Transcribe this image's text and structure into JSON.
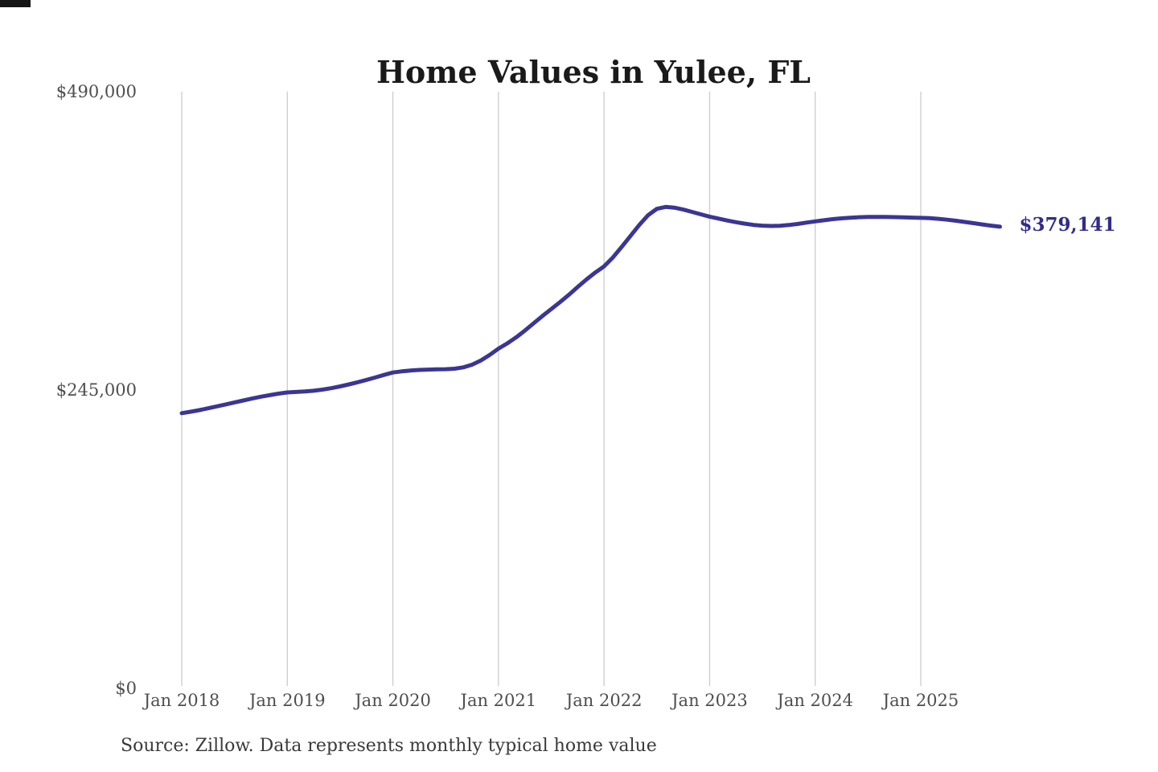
{
  "source_note": "Source: Zillow. Data represents monthly typical home value",
  "colors": {
    "line": "#3a3695",
    "end_label": "#302c8c",
    "gridline": "#cccccc",
    "axis_text": "#4e4e4e",
    "title_text": "#1a1a1a"
  },
  "chart_data": {
    "type": "line",
    "title": "Home Values in Yulee, FL",
    "xlabel": "",
    "ylabel": "",
    "ylim": [
      0,
      490000
    ],
    "grid": "vertical-yearly",
    "legend_position": "none",
    "y_ticks": [
      {
        "value": 0,
        "label": "$0"
      },
      {
        "value": 245000,
        "label": "$245,000"
      },
      {
        "value": 490000,
        "label": "$490,000"
      }
    ],
    "x_ticks": [
      "Jan 2018",
      "Jan 2019",
      "Jan 2020",
      "Jan 2021",
      "Jan 2022",
      "Jan 2023",
      "Jan 2024",
      "Jan 2025"
    ],
    "x_range": "Jan 2018 to Oct 2025, monthly",
    "end_label": "$379,141",
    "final_value": 379141,
    "series": [
      {
        "name": "Typical home value (USD)",
        "start_month": "2018-01",
        "values": [
          226000,
          227200,
          228500,
          230000,
          231600,
          233200,
          234800,
          236400,
          238000,
          239500,
          240800,
          242000,
          243000,
          243400,
          243800,
          244400,
          245300,
          246500,
          248000,
          249600,
          251400,
          253300,
          255300,
          257400,
          259400,
          260300,
          261000,
          261500,
          261800,
          262000,
          262100,
          262500,
          263600,
          265800,
          269300,
          273800,
          279000,
          283300,
          288200,
          293800,
          299800,
          305800,
          311500,
          317200,
          323200,
          329600,
          335800,
          341500,
          346500,
          353800,
          362500,
          371500,
          380500,
          388500,
          393800,
          395400,
          394800,
          393200,
          391300,
          389300,
          387400,
          385800,
          384200,
          382800,
          381600,
          380600,
          380000,
          379700,
          379900,
          380500,
          381400,
          382500,
          383500,
          384400,
          385300,
          386000,
          386500,
          386900,
          387100,
          387200,
          387100,
          387000,
          386800,
          386600,
          386400,
          386100,
          385600,
          384900,
          384000,
          383000,
          382000,
          381000,
          380000,
          379141
        ]
      }
    ]
  }
}
